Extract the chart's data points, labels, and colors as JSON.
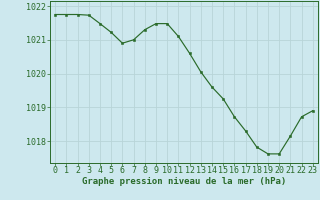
{
  "x": [
    0,
    1,
    2,
    3,
    4,
    5,
    6,
    7,
    8,
    9,
    10,
    11,
    12,
    13,
    14,
    15,
    16,
    17,
    18,
    19,
    20,
    21,
    22,
    23
  ],
  "y": [
    1021.75,
    1021.75,
    1021.75,
    1021.73,
    1021.48,
    1021.22,
    1020.9,
    1021.0,
    1021.3,
    1021.48,
    1021.48,
    1021.1,
    1020.6,
    1020.05,
    1019.6,
    1019.25,
    1018.72,
    1018.3,
    1017.82,
    1017.62,
    1017.62,
    1018.15,
    1018.72,
    1018.9
  ],
  "line_color": "#2a6b2a",
  "marker_color": "#2a6b2a",
  "bg_color": "#cde8ee",
  "grid_color": "#b8d4d8",
  "axis_label_color": "#2a6b2a",
  "xlabel": "Graphe pression niveau de la mer (hPa)",
  "ylim": [
    1017.35,
    1022.15
  ],
  "yticks": [
    1018,
    1019,
    1020,
    1021,
    1022
  ],
  "ytick_labels": [
    "1018",
    "1019",
    "1020",
    "1021",
    "1022"
  ],
  "label_fontsize": 6.5,
  "tick_fontsize": 6.0
}
